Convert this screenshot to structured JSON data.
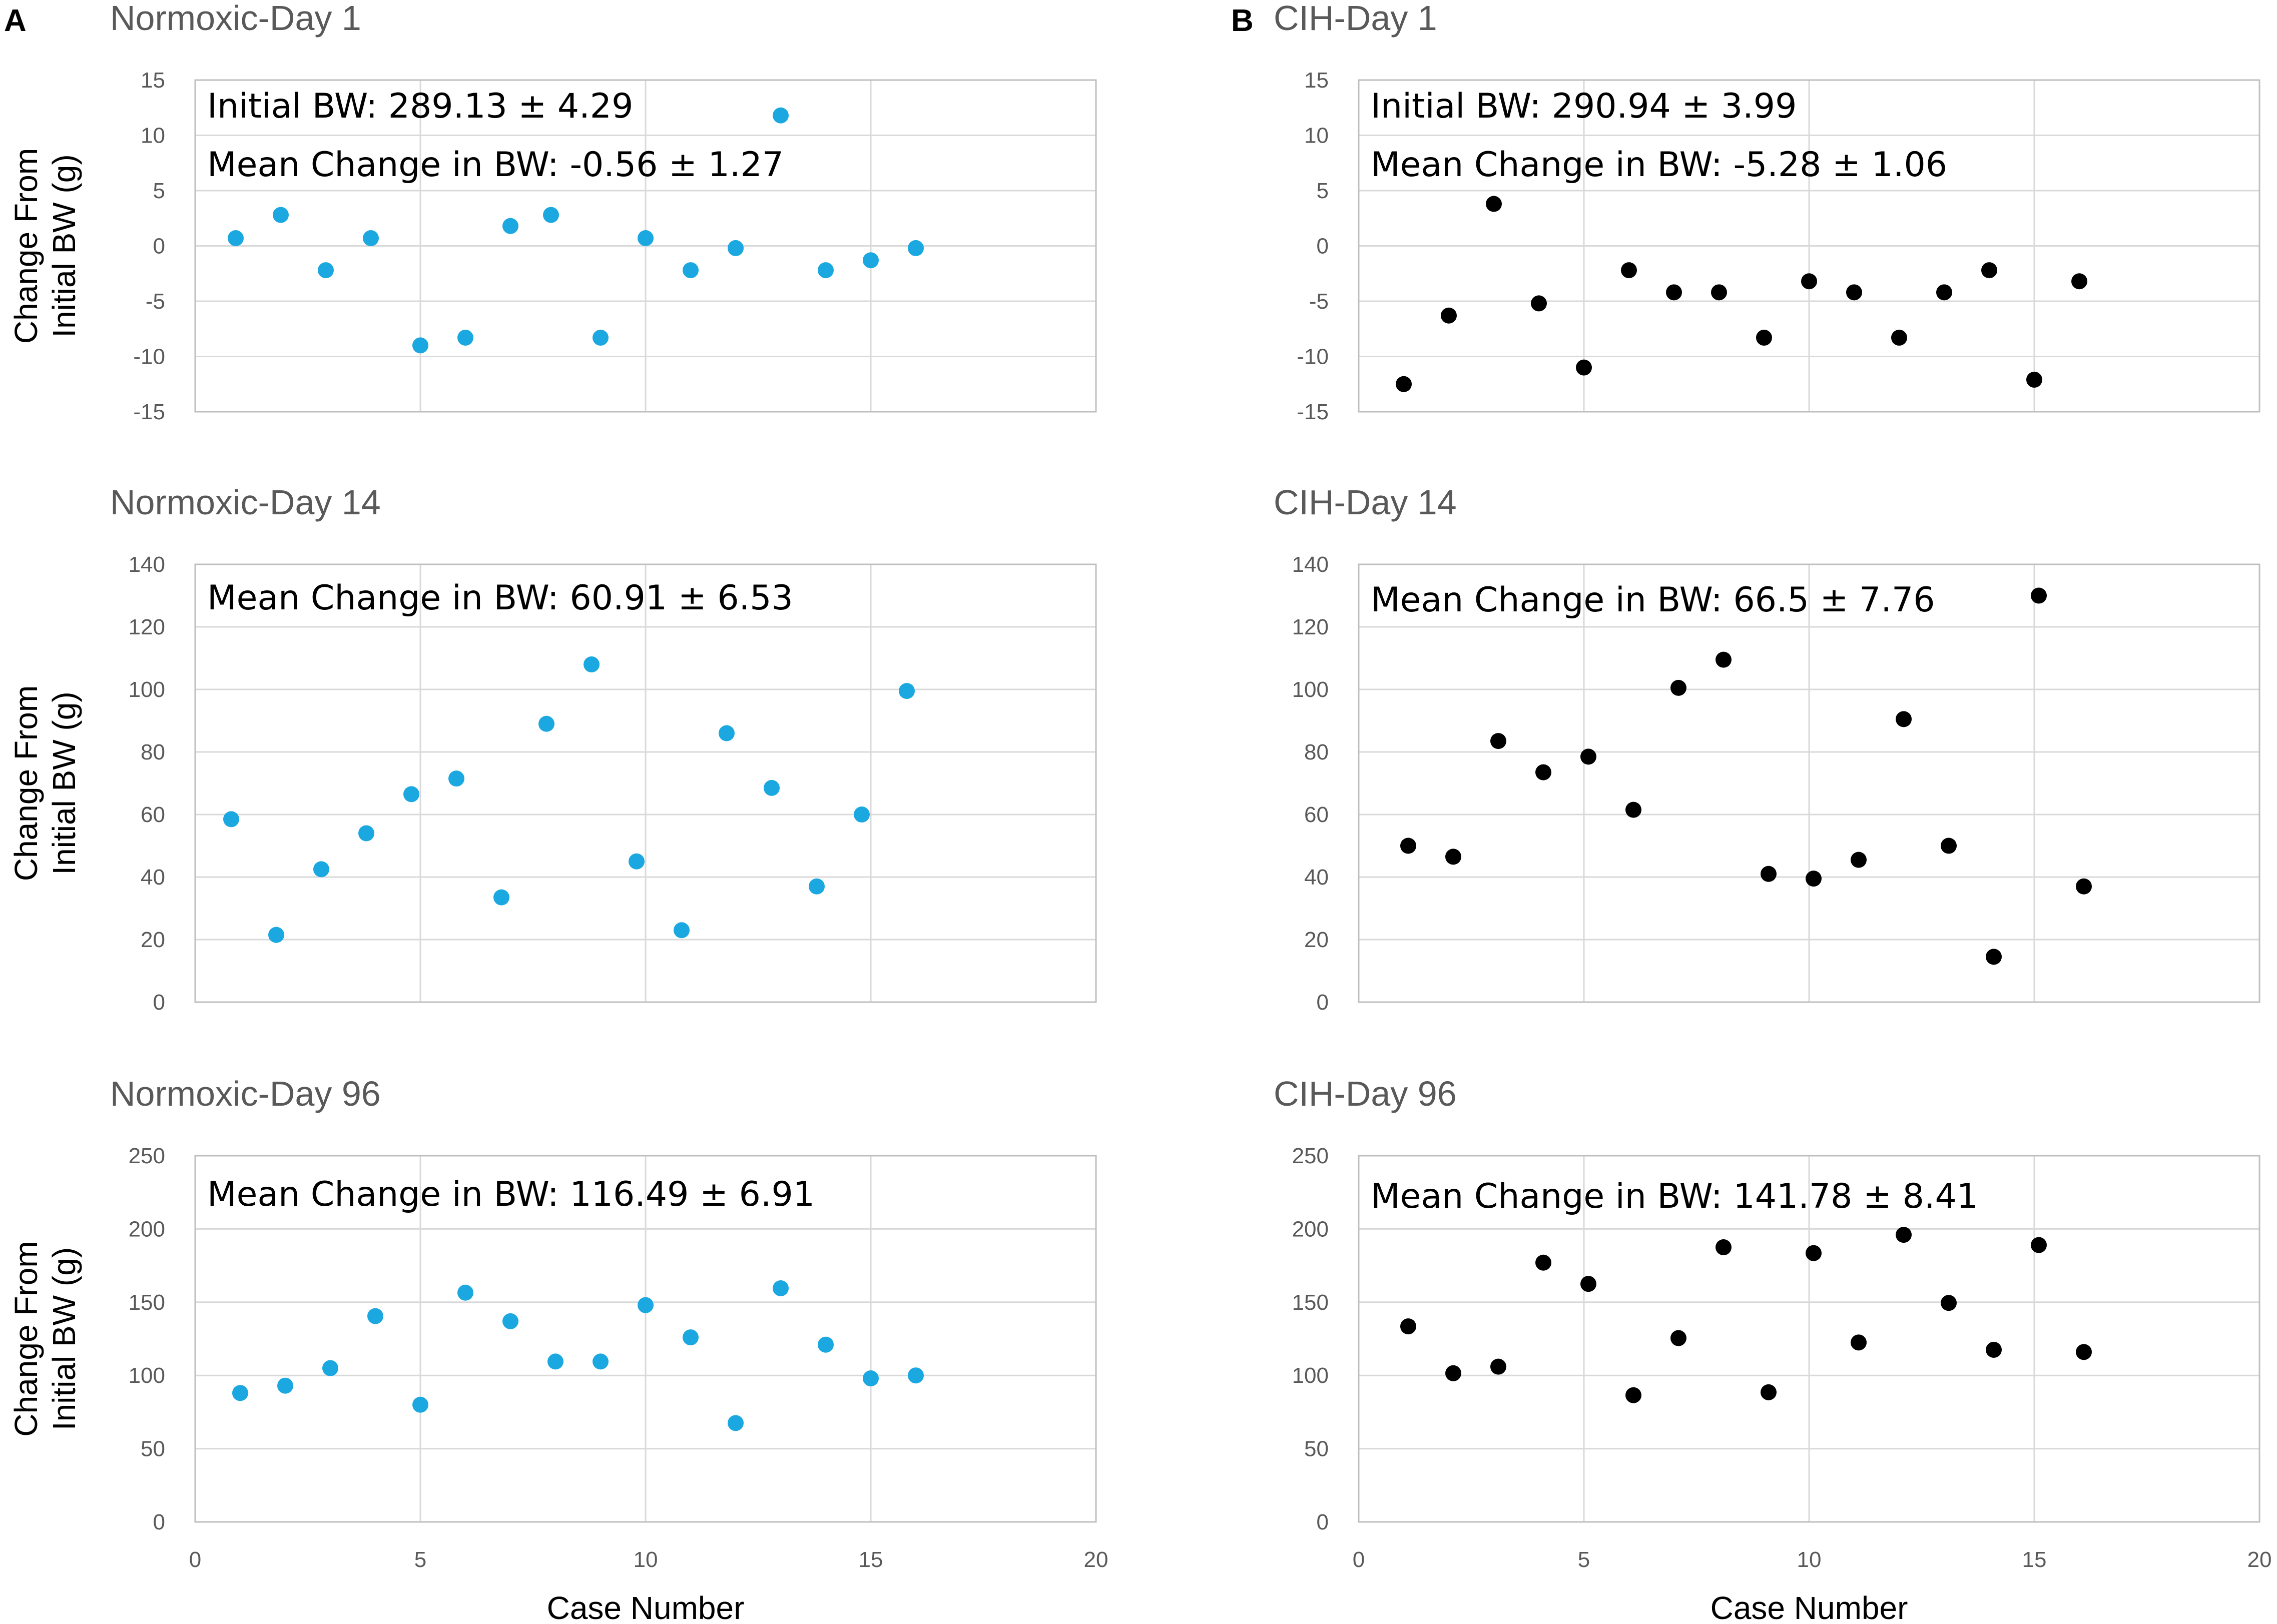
{
  "panels": {
    "A": "A",
    "B": "B"
  },
  "common": {
    "xlabel": "Case Number",
    "ylabel_line1": "Change From",
    "ylabel_line2": "Initial BW (g)",
    "xlim": [
      0,
      20
    ],
    "xticks": [
      0,
      5,
      10,
      15,
      20
    ]
  },
  "colors": {
    "normoxic": "#1ba8e0",
    "cih": "#000000",
    "grid": "#d9d9d9",
    "title": "#595959"
  },
  "chart_data": [
    {
      "id": "nd1",
      "type": "scatter",
      "title": "Normoxic-Day 1",
      "group": "normoxic",
      "xlabel": "",
      "ylabel": "Change From Initial BW (g)",
      "ylim": [
        -15,
        15
      ],
      "yticks": [
        -15,
        -10,
        -5,
        0,
        5,
        10,
        15
      ],
      "annotations": [
        "Initial BW: 289.13 ± 4.29",
        "Mean Change in BW: -0.56 ± 1.27"
      ],
      "x": [
        0.9,
        1.9,
        2.9,
        3.9,
        5.0,
        6.0,
        7.0,
        7.9,
        9.0,
        10.0,
        11.0,
        12.0,
        13.0,
        14.0,
        15.0,
        16.0
      ],
      "y": [
        0.7,
        2.8,
        -2.2,
        0.7,
        -9.0,
        -8.3,
        1.8,
        2.8,
        -8.3,
        0.7,
        -2.2,
        -0.2,
        11.8,
        -2.2,
        -1.3,
        -0.2
      ]
    },
    {
      "id": "cd1",
      "type": "scatter",
      "title": "CIH-Day 1",
      "group": "cih",
      "xlabel": "",
      "ylabel": "",
      "ylim": [
        -15,
        15
      ],
      "yticks": [
        -15,
        -10,
        -5,
        0,
        5,
        10,
        15
      ],
      "annotations": [
        "Initial BW: 290.94 ± 3.99",
        "Mean Change in BW: -5.28 ± 1.06"
      ],
      "x": [
        1.0,
        2.0,
        3.0,
        4.0,
        5.0,
        6.0,
        7.0,
        8.0,
        9.0,
        10.0,
        11.0,
        12.0,
        13.0,
        14.0,
        15.0,
        16.0
      ],
      "y": [
        -12.5,
        -6.3,
        3.8,
        -5.2,
        -11.0,
        -2.2,
        -4.2,
        -4.2,
        -8.3,
        -3.2,
        -4.2,
        -8.3,
        -4.2,
        -2.2,
        -12.1,
        -3.2
      ]
    },
    {
      "id": "nd14",
      "type": "scatter",
      "title": "Normoxic-Day 14",
      "group": "normoxic",
      "xlabel": "",
      "ylabel": "Change From Initial BW (g)",
      "ylim": [
        0,
        140
      ],
      "yticks": [
        0,
        20,
        40,
        60,
        80,
        100,
        120,
        140
      ],
      "annotations": [
        "Mean Change in BW: 60.91 ± 6.53"
      ],
      "x": [
        0.8,
        1.8,
        2.8,
        3.8,
        4.8,
        5.8,
        6.8,
        7.8,
        8.8,
        9.8,
        10.8,
        11.8,
        12.8,
        13.8,
        14.8,
        15.8
      ],
      "y": [
        58.5,
        21.5,
        42.5,
        54.0,
        66.5,
        71.5,
        33.5,
        89.0,
        108.0,
        45.0,
        23.0,
        86.0,
        68.5,
        37.0,
        60.0,
        99.5
      ]
    },
    {
      "id": "cd14",
      "type": "scatter",
      "title": "CIH-Day 14",
      "group": "cih",
      "xlabel": "",
      "ylabel": "",
      "ylim": [
        0,
        140
      ],
      "yticks": [
        0,
        20,
        40,
        60,
        80,
        100,
        120,
        140
      ],
      "annotations": [
        "Mean Change in BW: 66.5 ± 7.76"
      ],
      "x": [
        1.1,
        2.1,
        3.1,
        4.1,
        5.1,
        6.1,
        7.1,
        8.1,
        9.1,
        10.1,
        11.1,
        12.1,
        13.1,
        14.1,
        15.1,
        16.1
      ],
      "y": [
        50.0,
        46.5,
        83.5,
        73.5,
        78.5,
        61.5,
        100.5,
        109.5,
        41.0,
        39.5,
        45.5,
        90.5,
        50.0,
        14.5,
        130.0,
        37.0
      ]
    },
    {
      "id": "nd96",
      "type": "scatter",
      "title": "Normoxic-Day 96",
      "group": "normoxic",
      "xlabel": "Case Number",
      "ylabel": "Change From Initial BW (g)",
      "ylim": [
        0,
        250
      ],
      "yticks": [
        0,
        50,
        100,
        150,
        200,
        250
      ],
      "annotations": [
        "Mean Change in BW: 116.49 ± 6.91"
      ],
      "x": [
        1.0,
        2.0,
        3.0,
        4.0,
        5.0,
        6.0,
        7.0,
        8.0,
        9.0,
        10.0,
        11.0,
        12.0,
        13.0,
        14.0,
        15.0,
        16.0
      ],
      "y": [
        88.0,
        93.0,
        105.0,
        140.5,
        80.0,
        156.5,
        137.0,
        109.5,
        109.5,
        148.0,
        126.0,
        67.5,
        159.5,
        121.0,
        98.0,
        100.0
      ]
    },
    {
      "id": "cd96",
      "type": "scatter",
      "title": "CIH-Day 96",
      "group": "cih",
      "xlabel": "Case Number",
      "ylabel": "",
      "ylim": [
        0,
        250
      ],
      "yticks": [
        0,
        50,
        100,
        150,
        200,
        250
      ],
      "annotations": [
        "Mean Change in BW: 141.78 ± 8.41"
      ],
      "x": [
        1.1,
        2.1,
        3.1,
        4.1,
        5.1,
        6.1,
        7.1,
        8.1,
        9.1,
        10.1,
        11.1,
        12.1,
        13.1,
        14.1,
        15.1,
        16.1
      ],
      "y": [
        133.5,
        101.5,
        106.0,
        177.0,
        162.5,
        86.5,
        125.5,
        187.5,
        88.5,
        183.5,
        122.5,
        196.0,
        149.5,
        117.5,
        189.0,
        116.0
      ]
    }
  ]
}
